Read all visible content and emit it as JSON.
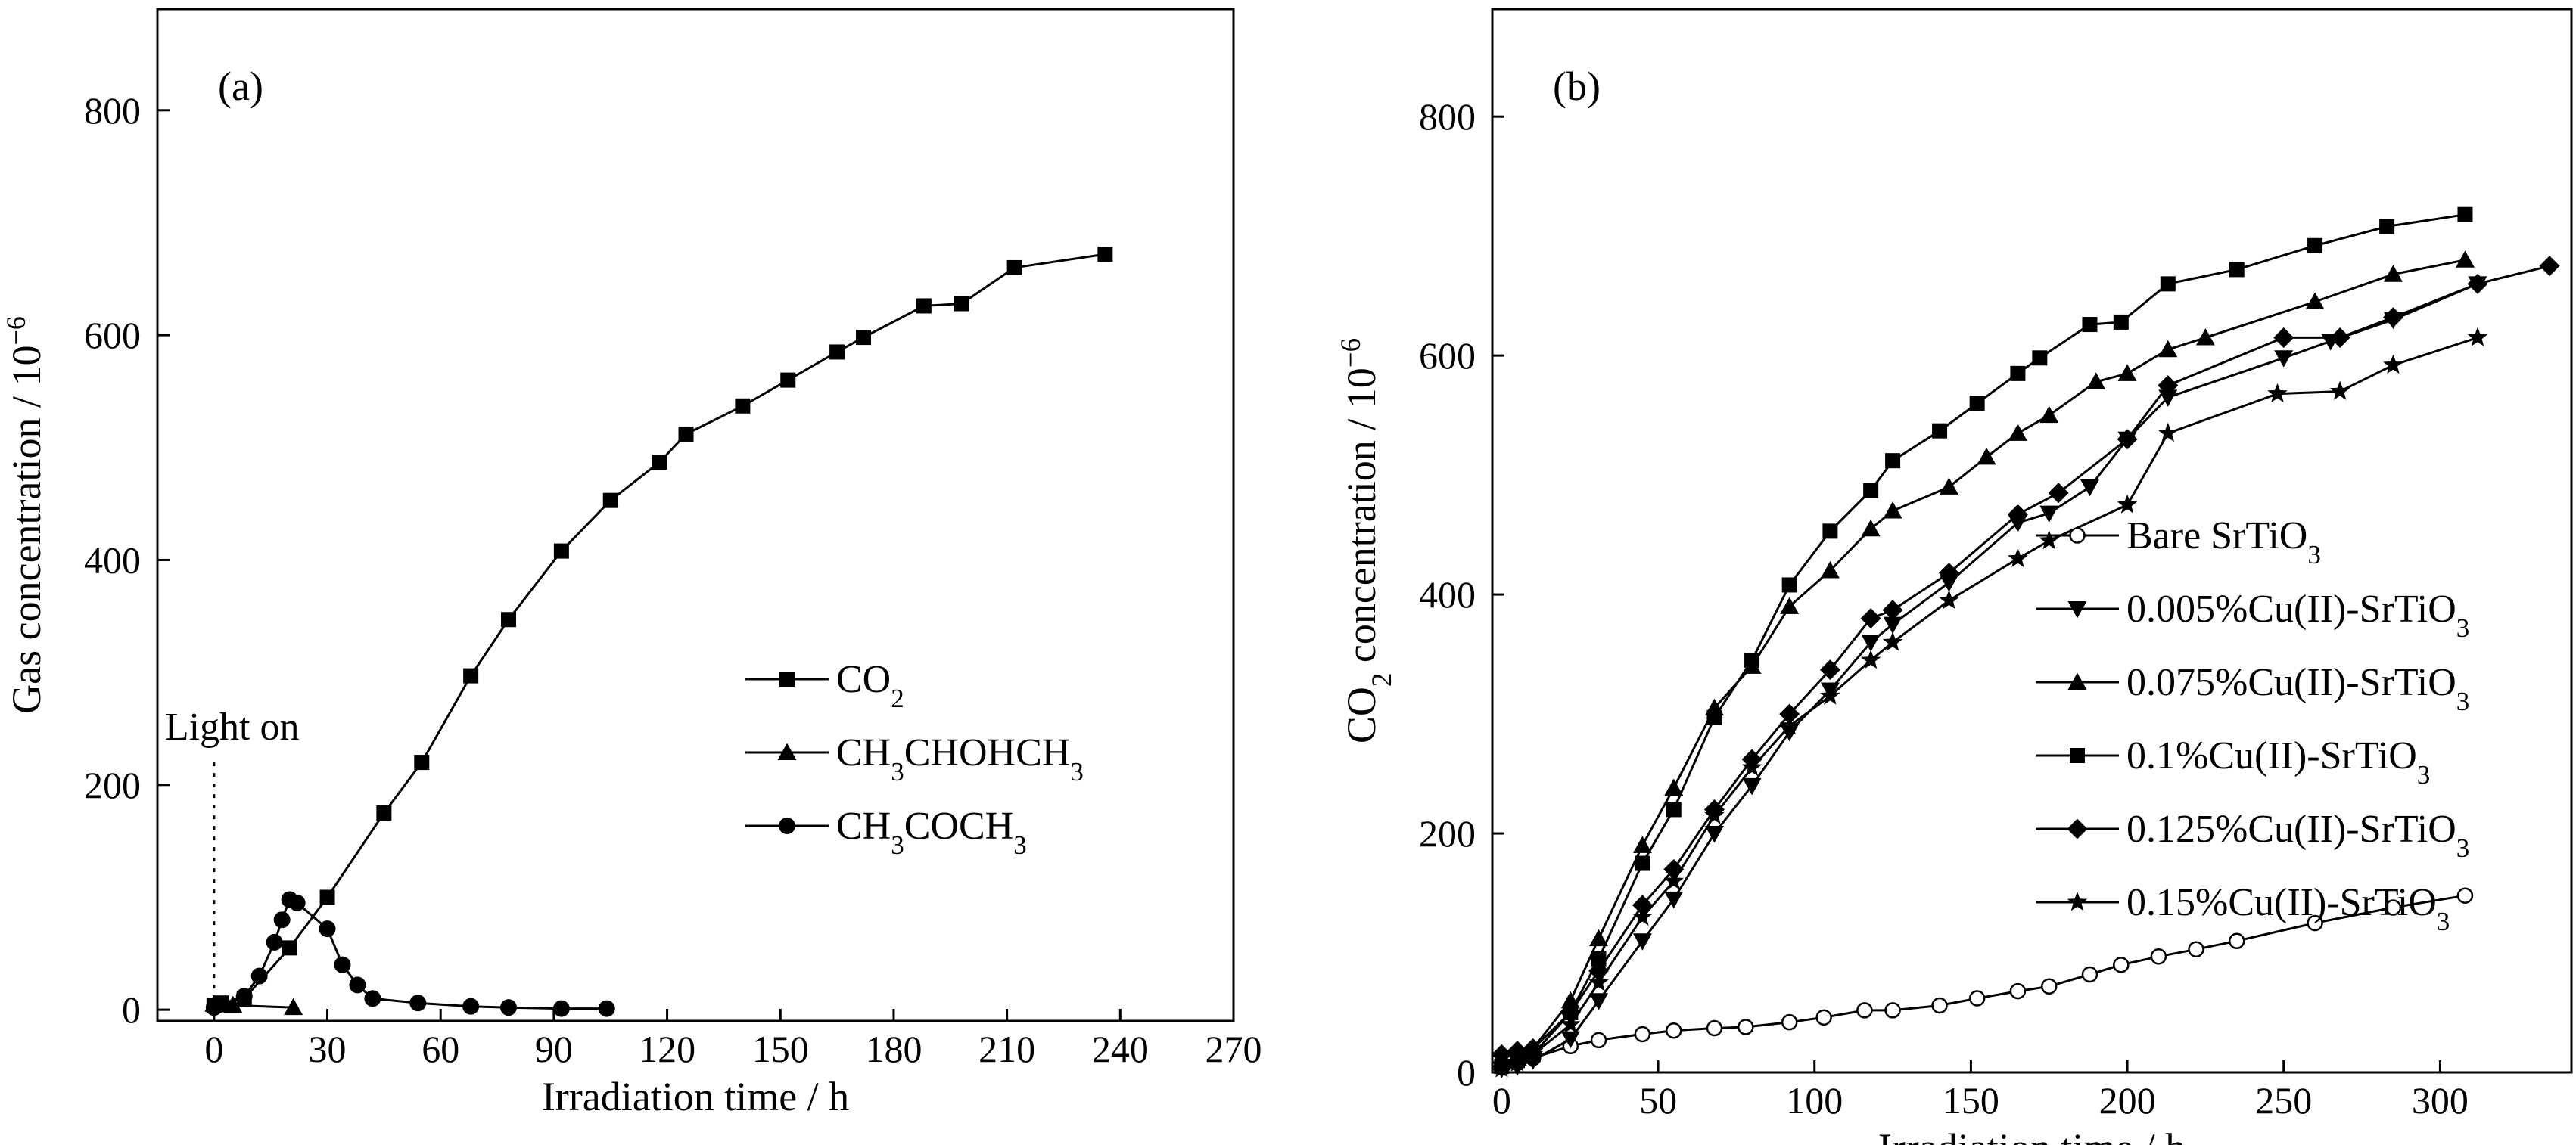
{
  "chart_data": [
    {
      "type": "line",
      "panel_label": "(a)",
      "xlabel": "Irradiation time / h",
      "ylabel": "Gas concentration  / 10",
      "ylabel_sup": "−6",
      "xlim": [
        -15,
        270
      ],
      "ylim": [
        -10,
        890
      ],
      "x_ticks": [
        0,
        30,
        60,
        90,
        120,
        150,
        180,
        210,
        240,
        270
      ],
      "y_ticks": [
        0,
        200,
        400,
        600,
        800
      ],
      "annotation": {
        "text": "Light on",
        "x": 0
      },
      "legend_position": "right-middle",
      "series": [
        {
          "name": "CO2",
          "label_parts": [
            [
              "CO",
              ""
            ],
            [
              "2",
              "sub"
            ]
          ],
          "marker": "square",
          "x": [
            0,
            2,
            8,
            20,
            30,
            45,
            55,
            68,
            78,
            92,
            105,
            118,
            125,
            140,
            152,
            165,
            172,
            188,
            198,
            212,
            236
          ],
          "y": [
            4,
            6,
            10,
            55,
            100,
            175,
            220,
            297,
            347,
            408,
            453,
            487,
            512,
            537,
            560,
            585,
            598,
            626,
            628,
            660,
            672
          ]
        },
        {
          "name": "CH3CHOHCH3",
          "label_parts": [
            [
              "CH",
              ""
            ],
            [
              "3",
              "sub"
            ],
            [
              "CHOHCH",
              ""
            ],
            [
              "3",
              "sub"
            ]
          ],
          "marker": "triangle",
          "x": [
            0,
            5,
            21
          ],
          "y": [
            5,
            4,
            2
          ]
        },
        {
          "name": "CH3COCH3",
          "label_parts": [
            [
              "CH",
              ""
            ],
            [
              "3",
              "sub"
            ],
            [
              "COCH",
              ""
            ],
            [
              "3",
              "sub"
            ]
          ],
          "marker": "circle",
          "x": [
            0,
            2,
            8,
            12,
            16,
            18,
            20,
            22,
            30,
            34,
            38,
            42,
            54,
            68,
            78,
            92,
            104
          ],
          "y": [
            2,
            5,
            12,
            30,
            60,
            80,
            98,
            95,
            72,
            40,
            22,
            10,
            6,
            3,
            2,
            1,
            1
          ]
        }
      ]
    },
    {
      "type": "line",
      "panel_label": "(b)",
      "xlabel": "Irradiation time / h",
      "ylabel_parts": [
        [
          "CO",
          ""
        ],
        [
          "2",
          "sub"
        ],
        [
          " concentration / 10",
          ""
        ],
        [
          "−6",
          "sup"
        ]
      ],
      "xlim": [
        -3,
        342
      ],
      "ylim": [
        0,
        890
      ],
      "x_ticks": [
        0,
        50,
        100,
        150,
        200,
        250,
        300
      ],
      "y_ticks": [
        0,
        200,
        400,
        600,
        800
      ],
      "legend_position": "right-middle",
      "series": [
        {
          "name": "Bare SrTiO3",
          "label_parts": [
            [
              "Bare SrTiO",
              ""
            ],
            [
              "3",
              "sub"
            ]
          ],
          "marker": "circle-open",
          "x": [
            0,
            5,
            10,
            22,
            31,
            45,
            55,
            68,
            78,
            92,
            103,
            116,
            125,
            140,
            152,
            165,
            175,
            188,
            198,
            210,
            222,
            235,
            260,
            285,
            308
          ],
          "y": [
            5,
            8,
            12,
            22,
            27,
            32,
            35,
            37,
            38,
            42,
            46,
            52,
            52,
            56,
            62,
            68,
            72,
            82,
            90,
            97,
            103,
            110,
            125,
            138,
            148
          ]
        },
        {
          "name": "0.005%Cu(II)-SrTiO3",
          "label_parts": [
            [
              "0.005%Cu(II)-SrTiO",
              ""
            ],
            [
              "3",
              "sub"
            ]
          ],
          "marker": "triangle-down",
          "x": [
            0,
            5,
            10,
            22,
            31,
            45,
            55,
            68,
            80,
            92,
            105,
            118,
            125,
            143,
            165,
            175,
            188,
            200,
            213,
            250,
            265,
            285,
            312
          ],
          "y": [
            3,
            5,
            10,
            28,
            60,
            110,
            145,
            200,
            240,
            285,
            320,
            360,
            375,
            410,
            460,
            468,
            490,
            530,
            565,
            598,
            612,
            630,
            660
          ]
        },
        {
          "name": "0.075%Cu(II)-SrTiO3",
          "label_parts": [
            [
              "0.075%Cu(II)-SrTiO",
              ""
            ],
            [
              "3",
              "sub"
            ]
          ],
          "marker": "triangle",
          "x": [
            0,
            5,
            10,
            22,
            31,
            45,
            55,
            68,
            80,
            92,
            105,
            118,
            125,
            143,
            155,
            165,
            175,
            190,
            200,
            213,
            225,
            260,
            285,
            308
          ],
          "y": [
            8,
            12,
            20,
            60,
            112,
            190,
            238,
            305,
            340,
            390,
            420,
            455,
            470,
            490,
            515,
            535,
            550,
            578,
            585,
            605,
            615,
            645,
            668,
            680
          ]
        },
        {
          "name": "0.1%Cu(II)-SrTiO3",
          "label_parts": [
            [
              "0.1%Cu(II)-SrTiO",
              ""
            ],
            [
              "3",
              "sub"
            ]
          ],
          "marker": "square",
          "x": [
            0,
            5,
            10,
            22,
            31,
            45,
            55,
            68,
            80,
            92,
            105,
            118,
            125,
            140,
            152,
            165,
            172,
            188,
            198,
            213,
            235,
            260,
            283,
            308
          ],
          "y": [
            5,
            10,
            15,
            50,
            95,
            175,
            220,
            297,
            345,
            408,
            453,
            487,
            512,
            537,
            560,
            585,
            598,
            626,
            628,
            660,
            672,
            692,
            708,
            718
          ]
        },
        {
          "name": "0.125%Cu(II)-SrTiO3",
          "label_parts": [
            [
              "0.125%Cu(II)-SrTiO",
              ""
            ],
            [
              "3",
              "sub"
            ]
          ],
          "marker": "diamond",
          "x": [
            0,
            5,
            10,
            22,
            31,
            45,
            55,
            68,
            80,
            92,
            105,
            118,
            125,
            143,
            165,
            178,
            200,
            213,
            250,
            268,
            285,
            312,
            335
          ],
          "y": [
            15,
            18,
            20,
            50,
            85,
            140,
            170,
            220,
            262,
            300,
            337,
            380,
            387,
            418,
            467,
            485,
            530,
            575,
            615,
            615,
            632,
            660,
            675
          ]
        },
        {
          "name": "0.15%Cu(II)-SrTiO3",
          "label_parts": [
            [
              "0.15%Cu(II)-SrTiO",
              ""
            ],
            [
              "3",
              "sub"
            ]
          ],
          "marker": "star",
          "x": [
            0,
            5,
            10,
            22,
            31,
            45,
            55,
            68,
            80,
            92,
            105,
            118,
            125,
            143,
            165,
            175,
            200,
            213,
            248,
            268,
            285,
            312
          ],
          "y": [
            3,
            8,
            15,
            40,
            75,
            130,
            160,
            215,
            255,
            290,
            315,
            345,
            360,
            395,
            430,
            445,
            475,
            535,
            568,
            570,
            592,
            615
          ]
        }
      ]
    }
  ]
}
